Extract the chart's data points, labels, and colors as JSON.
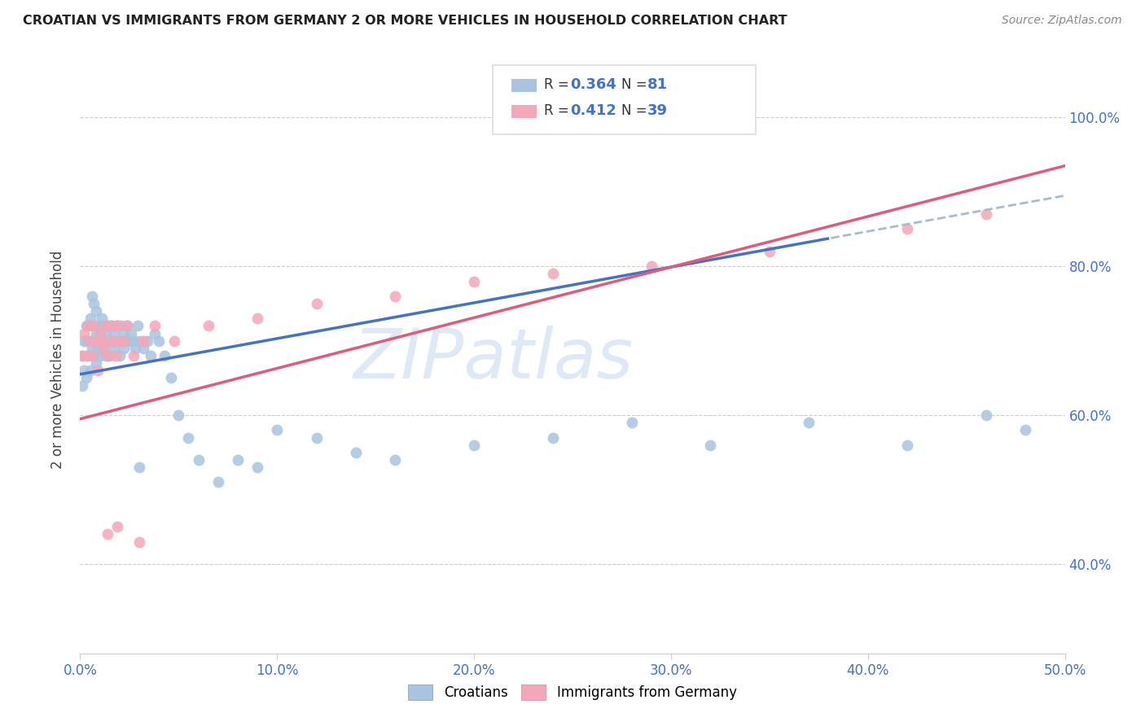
{
  "title": "CROATIAN VS IMMIGRANTS FROM GERMANY 2 OR MORE VEHICLES IN HOUSEHOLD CORRELATION CHART",
  "source": "Source: ZipAtlas.com",
  "ylabel_label": "2 or more Vehicles in Household",
  "ylabel_ticks_right": [
    "40.0%",
    "60.0%",
    "80.0%",
    "100.0%"
  ],
  "xlabel_ticks": [
    "0.0%",
    "10.0%",
    "20.0%",
    "30.0%",
    "40.0%",
    "50.0%"
  ],
  "xmin": 0.0,
  "xmax": 0.5,
  "ymin": 0.28,
  "ymax": 1.07,
  "croatians_color": "#a8c4e0",
  "immigrants_color": "#f4a7b9",
  "trendline_croatians_color": "#4472c4",
  "trendline_immigrants_color": "#e05a7a",
  "trendline_dashed_color": "#aabbcc",
  "watermark_text": "ZIPatlas",
  "watermark_color": "#c5d8ee",
  "legend_r1": "0.364",
  "legend_n1": "81",
  "legend_r2": "0.412",
  "legend_n2": "39",
  "croatians_x": [
    0.001,
    0.001,
    0.002,
    0.002,
    0.003,
    0.003,
    0.003,
    0.004,
    0.004,
    0.005,
    0.005,
    0.005,
    0.006,
    0.006,
    0.006,
    0.007,
    0.007,
    0.007,
    0.008,
    0.008,
    0.008,
    0.009,
    0.009,
    0.01,
    0.01,
    0.011,
    0.011,
    0.012,
    0.012,
    0.013,
    0.013,
    0.014,
    0.014,
    0.015,
    0.015,
    0.016,
    0.016,
    0.017,
    0.017,
    0.018,
    0.019,
    0.019,
    0.02,
    0.02,
    0.021,
    0.022,
    0.022,
    0.023,
    0.024,
    0.025,
    0.026,
    0.027,
    0.028,
    0.029,
    0.03,
    0.032,
    0.034,
    0.036,
    0.038,
    0.04,
    0.043,
    0.046,
    0.05,
    0.055,
    0.06,
    0.07,
    0.08,
    0.09,
    0.1,
    0.12,
    0.14,
    0.16,
    0.2,
    0.24,
    0.28,
    0.32,
    0.37,
    0.42,
    0.46,
    0.48,
    0.03
  ],
  "croatians_y": [
    0.64,
    0.68,
    0.66,
    0.7,
    0.65,
    0.7,
    0.72,
    0.68,
    0.72,
    0.66,
    0.7,
    0.73,
    0.69,
    0.72,
    0.76,
    0.68,
    0.72,
    0.75,
    0.67,
    0.71,
    0.74,
    0.69,
    0.72,
    0.68,
    0.71,
    0.7,
    0.73,
    0.69,
    0.72,
    0.68,
    0.71,
    0.7,
    0.72,
    0.68,
    0.72,
    0.7,
    0.72,
    0.69,
    0.71,
    0.7,
    0.72,
    0.72,
    0.7,
    0.68,
    0.72,
    0.71,
    0.69,
    0.7,
    0.72,
    0.7,
    0.71,
    0.7,
    0.69,
    0.72,
    0.7,
    0.69,
    0.7,
    0.68,
    0.71,
    0.7,
    0.68,
    0.65,
    0.6,
    0.57,
    0.54,
    0.51,
    0.54,
    0.53,
    0.58,
    0.57,
    0.55,
    0.54,
    0.56,
    0.57,
    0.59,
    0.56,
    0.59,
    0.56,
    0.6,
    0.58,
    0.53
  ],
  "immigrants_x": [
    0.001,
    0.002,
    0.003,
    0.004,
    0.005,
    0.006,
    0.007,
    0.008,
    0.009,
    0.01,
    0.011,
    0.012,
    0.013,
    0.014,
    0.015,
    0.016,
    0.017,
    0.018,
    0.019,
    0.02,
    0.022,
    0.024,
    0.027,
    0.032,
    0.038,
    0.048,
    0.065,
    0.09,
    0.12,
    0.16,
    0.2,
    0.24,
    0.29,
    0.35,
    0.42,
    0.46,
    0.03,
    0.014,
    0.019
  ],
  "immigrants_y": [
    0.68,
    0.71,
    0.68,
    0.72,
    0.7,
    0.68,
    0.72,
    0.7,
    0.66,
    0.71,
    0.7,
    0.69,
    0.72,
    0.68,
    0.7,
    0.72,
    0.7,
    0.68,
    0.72,
    0.7,
    0.7,
    0.72,
    0.68,
    0.7,
    0.72,
    0.7,
    0.72,
    0.73,
    0.75,
    0.76,
    0.78,
    0.79,
    0.8,
    0.82,
    0.85,
    0.87,
    0.43,
    0.44,
    0.45
  ]
}
